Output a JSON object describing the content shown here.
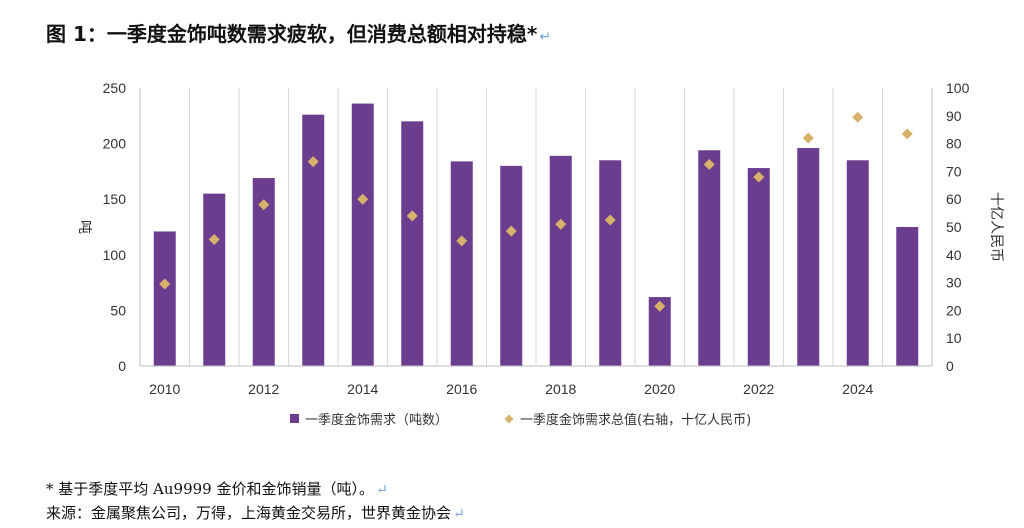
{
  "title": "图 1：一季度金饰吨数需求疲软，但消费总额相对持稳*",
  "return_mark": "↵",
  "colors": {
    "bar": "#6a3d8f",
    "marker": "#d8b26a",
    "grid": "#d9d9d9"
  },
  "chart_data": {
    "type": "bar",
    "categories": [
      "2010",
      "2011",
      "2012",
      "2013",
      "2014",
      "2015",
      "2016",
      "2017",
      "2018",
      "2019",
      "2020",
      "2021",
      "2022",
      "2023",
      "2024",
      "2025"
    ],
    "x_tick_labels": [
      "2010",
      "2012",
      "2014",
      "2016",
      "2018",
      "2020",
      "2022",
      "2024"
    ],
    "series": [
      {
        "name": "一季度金饰需求（吨数）",
        "axis": "left",
        "type": "bar",
        "values": [
          121,
          155,
          169,
          226,
          236,
          220,
          184,
          180,
          189,
          185,
          62,
          194,
          178,
          196,
          185,
          125
        ]
      },
      {
        "name": "一季度金饰需求总值(右轴，十亿人民币)",
        "axis": "right",
        "type": "scatter",
        "marker": "diamond",
        "values": [
          29.5,
          45.5,
          58,
          73.5,
          60,
          54,
          45,
          48.5,
          51,
          52.5,
          21.5,
          72.5,
          68,
          82,
          89.5,
          83.5
        ]
      }
    ],
    "ylabel_left": "吨",
    "ylabel_right": "十亿人民币",
    "ylim_left": [
      0,
      250
    ],
    "yticks_left": [
      0,
      50,
      100,
      150,
      200,
      250
    ],
    "ylim_right": [
      0,
      100
    ],
    "yticks_right": [
      0,
      10,
      20,
      30,
      40,
      50,
      60,
      70,
      80,
      90,
      100
    ],
    "grid": "vertical",
    "legend": "bottom"
  },
  "notes": {
    "line1": "* 基于季度平均 Au9999 金价和金饰销量（吨）。",
    "line2": "来源：金属聚焦公司，万得，上海黄金交易所，世界黄金协会"
  }
}
